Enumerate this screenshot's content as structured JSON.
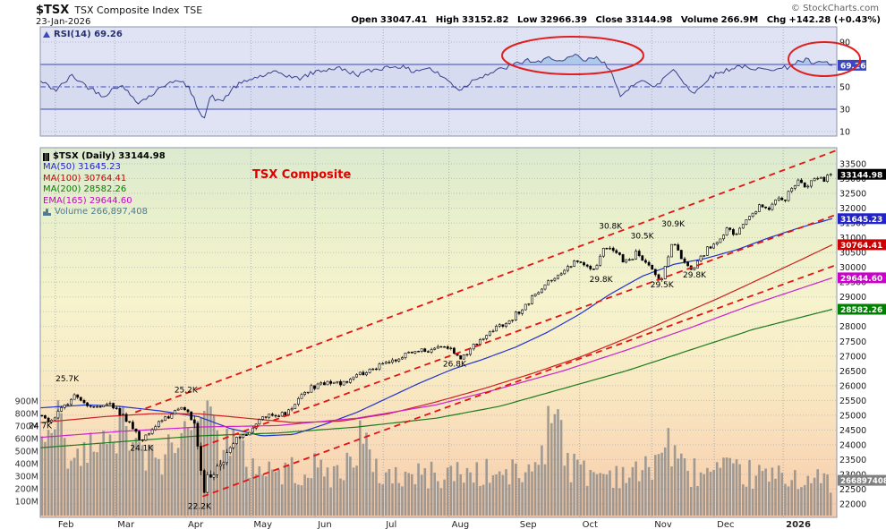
{
  "header": {
    "symbol": "$TSX",
    "name": "TSX Composite Index",
    "exchange": "TSE",
    "date": "23-Jan-2026",
    "copyright": "© StockCharts.com",
    "quote": {
      "open_label": "Open",
      "open": "33047.41",
      "high_label": "High",
      "high": "33152.82",
      "low_label": "Low",
      "low": "32966.39",
      "close_label": "Close",
      "close": "33144.98",
      "volume_label": "Volume",
      "volume": "266.9M",
      "chg_label": "Chg",
      "chg": "+142.28 (+0.43%)"
    }
  },
  "rsi_panel": {
    "legend": "RSI(14) 69.26"
  },
  "main_panel": {
    "watermark": "TSX Composite",
    "legend": [
      {
        "label": "$TSX (Daily) 33144.98",
        "color": "#000000",
        "icon": "icon-candle",
        "bold": true
      },
      {
        "label": "MA(50) 31645.23",
        "color": "#2222cc"
      },
      {
        "label": "MA(100) 30764.41",
        "color": "#cc0000"
      },
      {
        "label": "MA(200) 28582.26",
        "color": "#008000"
      },
      {
        "label": "EMA(165) 29644.60",
        "color": "#cc00cc"
      },
      {
        "label": "Volume 266,897,408",
        "color": "#527a8a",
        "icon": "icon-vol"
      }
    ]
  },
  "chart_data": {
    "months": [
      {
        "label": "Feb",
        "t": 0.019
      },
      {
        "label": "Mar",
        "t": 0.094
      },
      {
        "label": "Apr",
        "t": 0.183
      },
      {
        "label": "May",
        "t": 0.266
      },
      {
        "label": "Jun",
        "t": 0.347
      },
      {
        "label": "Jul",
        "t": 0.433
      },
      {
        "label": "Aug",
        "t": 0.516
      },
      {
        "label": "Sep",
        "t": 0.602
      },
      {
        "label": "Oct",
        "t": 0.681
      },
      {
        "label": "Nov",
        "t": 0.772
      },
      {
        "label": "Dec",
        "t": 0.851
      },
      {
        "label": "2026",
        "t": 0.938,
        "bold": true
      }
    ],
    "background_stops": [
      {
        "offset": "0%",
        "color": "#dceacf"
      },
      {
        "offset": "20%",
        "color": "#e9f0cb"
      },
      {
        "offset": "42%",
        "color": "#f6f3cd"
      },
      {
        "offset": "60%",
        "color": "#f8ecc5"
      },
      {
        "offset": "80%",
        "color": "#f9dcb9"
      },
      {
        "offset": "100%",
        "color": "#f6cbab"
      }
    ],
    "ellipses": [
      {
        "cx": 640,
        "cy": 62,
        "rx": 79,
        "ry": 21
      },
      {
        "cx": 921,
        "cy": 66,
        "rx": 40,
        "ry": 19
      }
    ],
    "rsi": {
      "type": "line",
      "name": "RSI(14)",
      "current": 69.26,
      "tag_text": "69.26",
      "ylim": [
        0,
        100
      ],
      "overbought": 70,
      "oversold": 30,
      "midline": 50,
      "axis_labels": [
        90,
        70,
        50,
        30,
        10
      ],
      "keyframes": [
        [
          0,
          55
        ],
        [
          0.02,
          47
        ],
        [
          0.04,
          60
        ],
        [
          0.06,
          50
        ],
        [
          0.08,
          42
        ],
        [
          0.1,
          52
        ],
        [
          0.125,
          36
        ],
        [
          0.145,
          45
        ],
        [
          0.165,
          56
        ],
        [
          0.185,
          52
        ],
        [
          0.198,
          33
        ],
        [
          0.207,
          22
        ],
        [
          0.215,
          42
        ],
        [
          0.228,
          36
        ],
        [
          0.245,
          50
        ],
        [
          0.27,
          58
        ],
        [
          0.3,
          63
        ],
        [
          0.325,
          57
        ],
        [
          0.35,
          64
        ],
        [
          0.375,
          67
        ],
        [
          0.4,
          61
        ],
        [
          0.425,
          66
        ],
        [
          0.45,
          69
        ],
        [
          0.47,
          64
        ],
        [
          0.49,
          67
        ],
        [
          0.51,
          58
        ],
        [
          0.53,
          47
        ],
        [
          0.55,
          58
        ],
        [
          0.575,
          64
        ],
        [
          0.6,
          70
        ],
        [
          0.615,
          74
        ],
        [
          0.63,
          71
        ],
        [
          0.645,
          77
        ],
        [
          0.66,
          72
        ],
        [
          0.675,
          78
        ],
        [
          0.688,
          73
        ],
        [
          0.7,
          76
        ],
        [
          0.712,
          71
        ],
        [
          0.722,
          64
        ],
        [
          0.733,
          39
        ],
        [
          0.748,
          52
        ],
        [
          0.76,
          58
        ],
        [
          0.775,
          48
        ],
        [
          0.79,
          60
        ],
        [
          0.8,
          66
        ],
        [
          0.812,
          55
        ],
        [
          0.825,
          43
        ],
        [
          0.84,
          56
        ],
        [
          0.855,
          62
        ],
        [
          0.87,
          66
        ],
        [
          0.885,
          69
        ],
        [
          0.9,
          64
        ],
        [
          0.915,
          68
        ],
        [
          0.93,
          65
        ],
        [
          0.945,
          68
        ],
        [
          0.955,
          72
        ],
        [
          0.968,
          74
        ],
        [
          0.978,
          70
        ],
        [
          0.99,
          72
        ],
        [
          1.0,
          69.26
        ]
      ]
    },
    "price": {
      "type": "candlestick",
      "name": "$TSX Daily",
      "last": 33144.98,
      "axis": {
        "min": 22000,
        "max": 33500,
        "step": 500
      },
      "keyframes": [
        [
          0,
          24950
        ],
        [
          0.008,
          24700
        ],
        [
          0.025,
          25250
        ],
        [
          0.045,
          25700
        ],
        [
          0.065,
          25250
        ],
        [
          0.085,
          25350
        ],
        [
          0.105,
          24900
        ],
        [
          0.125,
          24150
        ],
        [
          0.14,
          24500
        ],
        [
          0.155,
          24900
        ],
        [
          0.175,
          25250
        ],
        [
          0.188,
          25050
        ],
        [
          0.196,
          24300
        ],
        [
          0.202,
          23000
        ],
        [
          0.207,
          22250
        ],
        [
          0.212,
          23200
        ],
        [
          0.22,
          22900
        ],
        [
          0.232,
          23700
        ],
        [
          0.245,
          24150
        ],
        [
          0.26,
          24400
        ],
        [
          0.275,
          24800
        ],
        [
          0.29,
          25100
        ],
        [
          0.305,
          25000
        ],
        [
          0.32,
          25400
        ],
        [
          0.34,
          25900
        ],
        [
          0.36,
          26150
        ],
        [
          0.38,
          26050
        ],
        [
          0.4,
          26350
        ],
        [
          0.42,
          26600
        ],
        [
          0.44,
          26850
        ],
        [
          0.46,
          27000
        ],
        [
          0.475,
          27250
        ],
        [
          0.49,
          27100
        ],
        [
          0.505,
          27350
        ],
        [
          0.52,
          27150
        ],
        [
          0.53,
          26850
        ],
        [
          0.545,
          27300
        ],
        [
          0.56,
          27600
        ],
        [
          0.575,
          27900
        ],
        [
          0.59,
          28150
        ],
        [
          0.605,
          28500
        ],
        [
          0.62,
          28900
        ],
        [
          0.635,
          29300
        ],
        [
          0.65,
          29700
        ],
        [
          0.665,
          30000
        ],
        [
          0.68,
          30250
        ],
        [
          0.695,
          29850
        ],
        [
          0.705,
          30100
        ],
        [
          0.715,
          30750
        ],
        [
          0.725,
          30500
        ],
        [
          0.74,
          30200
        ],
        [
          0.755,
          30500
        ],
        [
          0.77,
          30000
        ],
        [
          0.785,
          29550
        ],
        [
          0.8,
          30850
        ],
        [
          0.81,
          30400
        ],
        [
          0.825,
          29850
        ],
        [
          0.84,
          30500
        ],
        [
          0.855,
          30900
        ],
        [
          0.87,
          31300
        ],
        [
          0.88,
          31100
        ],
        [
          0.895,
          31700
        ],
        [
          0.91,
          32100
        ],
        [
          0.92,
          31900
        ],
        [
          0.93,
          32300
        ],
        [
          0.94,
          32200
        ],
        [
          0.95,
          32700
        ],
        [
          0.96,
          32900
        ],
        [
          0.97,
          32750
        ],
        [
          0.98,
          33050
        ],
        [
          0.99,
          32950
        ],
        [
          1.0,
          33144.98
        ]
      ],
      "overlays": [
        {
          "name": "MA50",
          "value": 31645.23,
          "color": "#2233cc",
          "points": [
            [
              0,
              25250
            ],
            [
              0.06,
              25350
            ],
            [
              0.1,
              25300
            ],
            [
              0.15,
              25150
            ],
            [
              0.2,
              24950
            ],
            [
              0.24,
              24550
            ],
            [
              0.28,
              24300
            ],
            [
              0.32,
              24350
            ],
            [
              0.36,
              24700
            ],
            [
              0.4,
              25100
            ],
            [
              0.44,
              25600
            ],
            [
              0.48,
              26100
            ],
            [
              0.52,
              26550
            ],
            [
              0.56,
              26900
            ],
            [
              0.6,
              27300
            ],
            [
              0.64,
              27800
            ],
            [
              0.68,
              28400
            ],
            [
              0.72,
              29100
            ],
            [
              0.76,
              29700
            ],
            [
              0.8,
              30100
            ],
            [
              0.84,
              30300
            ],
            [
              0.88,
              30600
            ],
            [
              0.92,
              31000
            ],
            [
              0.96,
              31350
            ],
            [
              1.0,
              31645.23
            ]
          ]
        },
        {
          "name": "MA100",
          "value": 30764.41,
          "color": "#cc2222",
          "points": [
            [
              0,
              24750
            ],
            [
              0.08,
              24950
            ],
            [
              0.14,
              25050
            ],
            [
              0.2,
              25050
            ],
            [
              0.26,
              24900
            ],
            [
              0.32,
              24750
            ],
            [
              0.38,
              24800
            ],
            [
              0.44,
              25050
            ],
            [
              0.5,
              25450
            ],
            [
              0.56,
              25900
            ],
            [
              0.62,
              26400
            ],
            [
              0.68,
              26950
            ],
            [
              0.74,
              27600
            ],
            [
              0.8,
              28300
            ],
            [
              0.86,
              29000
            ],
            [
              0.92,
              29750
            ],
            [
              0.96,
              30250
            ],
            [
              1.0,
              30764.41
            ]
          ]
        },
        {
          "name": "EMA165",
          "value": 29644.6,
          "color": "#cc22cc",
          "points": [
            [
              0,
              24250
            ],
            [
              0.1,
              24450
            ],
            [
              0.2,
              24600
            ],
            [
              0.3,
              24650
            ],
            [
              0.4,
              24900
            ],
            [
              0.5,
              25350
            ],
            [
              0.58,
              25900
            ],
            [
              0.66,
              26500
            ],
            [
              0.74,
              27200
            ],
            [
              0.82,
              27950
            ],
            [
              0.9,
              28750
            ],
            [
              1.0,
              29644.6
            ]
          ]
        },
        {
          "name": "MA200",
          "value": 28582.26,
          "color": "#1d7a1d",
          "points": [
            [
              0,
              23900
            ],
            [
              0.1,
              24100
            ],
            [
              0.2,
              24300
            ],
            [
              0.3,
              24400
            ],
            [
              0.4,
              24600
            ],
            [
              0.5,
              24900
            ],
            [
              0.58,
              25300
            ],
            [
              0.66,
              25900
            ],
            [
              0.74,
              26500
            ],
            [
              0.82,
              27200
            ],
            [
              0.9,
              27900
            ],
            [
              1.0,
              28582.26
            ]
          ]
        }
      ],
      "trendlines": [
        {
          "t1": 0.12,
          "v1": 25100,
          "t2": 1.005,
          "v2": 33950
        },
        {
          "t1": 0.205,
          "v1": 23950,
          "t2": 1.005,
          "v2": 31780
        },
        {
          "t1": 0.205,
          "v1": 22250,
          "t2": 1.005,
          "v2": 30080
        }
      ],
      "annotations": [
        {
          "label": "25.7K",
          "t": 0.034,
          "v": 26150
        },
        {
          "label": "24.7K",
          "t": 0.0,
          "v": 24550
        },
        {
          "label": "24.1K",
          "t": 0.128,
          "v": 23800
        },
        {
          "label": "25.2K",
          "t": 0.184,
          "v": 25770
        },
        {
          "label": "22.2K",
          "t": 0.201,
          "v": 21830
        },
        {
          "label": "26.8K",
          "t": 0.523,
          "v": 26650
        },
        {
          "label": "29.8K",
          "t": 0.708,
          "v": 29500
        },
        {
          "label": "30.8K",
          "t": 0.72,
          "v": 31300
        },
        {
          "label": "30.5K",
          "t": 0.76,
          "v": 30980
        },
        {
          "label": "29.5K",
          "t": 0.785,
          "v": 29320
        },
        {
          "label": "30.9K",
          "t": 0.799,
          "v": 31380
        },
        {
          "label": "29.8K",
          "t": 0.826,
          "v": 29650
        }
      ],
      "axis_tags": [
        {
          "text": "33144.98",
          "value": 33144.98,
          "bg": "#000000"
        },
        {
          "text": "31645.23",
          "value": 31645.23,
          "bg": "#2222cc"
        },
        {
          "text": "30764.41",
          "value": 30764.41,
          "bg": "#cc0000"
        },
        {
          "text": "29644.60",
          "value": 29644.6,
          "bg": "#cc00cc"
        },
        {
          "text": "28582.26",
          "value": 28582.26,
          "bg": "#008000"
        }
      ]
    },
    "volume": {
      "type": "bar",
      "name": "Volume",
      "current_millions": 266.9,
      "tag_text": "266897408",
      "axis_labels": [
        "900M",
        "800M",
        "700M",
        "600M",
        "500M",
        "400M",
        "300M",
        "200M",
        "100M"
      ],
      "keyframes": [
        [
          0,
          520
        ],
        [
          0.02,
          680
        ],
        [
          0.035,
          380
        ],
        [
          0.05,
          420
        ],
        [
          0.07,
          560
        ],
        [
          0.09,
          480
        ],
        [
          0.1,
          860
        ],
        [
          0.115,
          520
        ],
        [
          0.14,
          420
        ],
        [
          0.17,
          520
        ],
        [
          0.195,
          780
        ],
        [
          0.21,
          860
        ],
        [
          0.23,
          620
        ],
        [
          0.26,
          420
        ],
        [
          0.3,
          330
        ],
        [
          0.34,
          360
        ],
        [
          0.38,
          310
        ],
        [
          0.405,
          640
        ],
        [
          0.42,
          330
        ],
        [
          0.46,
          300
        ],
        [
          0.5,
          310
        ],
        [
          0.54,
          330
        ],
        [
          0.58,
          310
        ],
        [
          0.62,
          330
        ],
        [
          0.655,
          880
        ],
        [
          0.668,
          380
        ],
        [
          0.7,
          320
        ],
        [
          0.73,
          330
        ],
        [
          0.76,
          310
        ],
        [
          0.795,
          580
        ],
        [
          0.81,
          360
        ],
        [
          0.84,
          320
        ],
        [
          0.87,
          330
        ],
        [
          0.9,
          310
        ],
        [
          0.93,
          290
        ],
        [
          0.96,
          300
        ],
        [
          0.98,
          260
        ],
        [
          1.0,
          267
        ]
      ]
    }
  }
}
